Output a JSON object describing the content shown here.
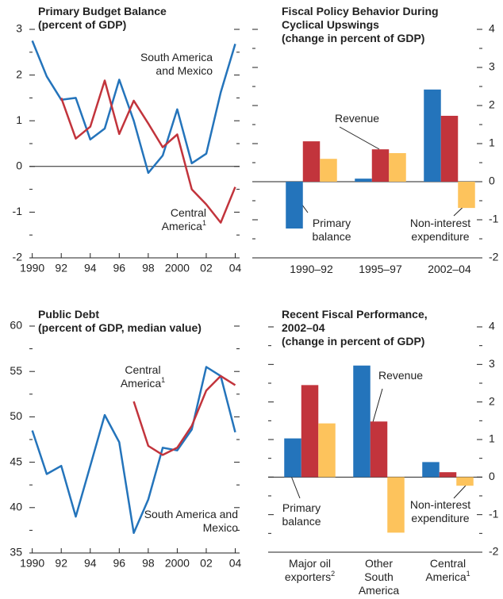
{
  "chart_data": [
    {
      "type": "line",
      "title": "Primary Budget Balance",
      "subtitle": "(percent of GDP)",
      "x": [
        1990,
        1991,
        1992,
        1993,
        1994,
        1995,
        1996,
        1997,
        1998,
        1999,
        2000,
        2001,
        2002,
        2003,
        2004
      ],
      "series": [
        {
          "name": "South America and Mexico",
          "color": "#2474bb",
          "values": [
            2.75,
            1.97,
            1.46,
            1.5,
            0.59,
            0.83,
            1.9,
            1.0,
            -0.14,
            0.24,
            1.25,
            0.07,
            0.28,
            1.62,
            2.68
          ]
        },
        {
          "name": "Central America",
          "note": "1",
          "color": "#c2343c",
          "values": [
            null,
            null,
            1.5,
            0.61,
            0.87,
            1.88,
            0.71,
            1.44,
            0.94,
            0.42,
            0.7,
            -0.5,
            -0.83,
            -1.23,
            -0.45
          ]
        }
      ],
      "xlim": [
        1989.8,
        2004.3
      ],
      "xticks": [
        1990,
        {
          "value": 1992,
          "label": "92"
        },
        {
          "value": 1994,
          "label": "94"
        },
        {
          "value": 1996,
          "label": "96"
        },
        {
          "value": 1998,
          "label": "98"
        },
        2000,
        {
          "value": 2002,
          "label": "02"
        },
        {
          "value": 2004,
          "label": "04"
        }
      ],
      "ylim": [
        -2,
        3
      ],
      "yticks": [
        -2,
        -1,
        0,
        1,
        2,
        3
      ],
      "yticks_minor": [
        -1.5,
        -0.5,
        0.5,
        1.5,
        2.5
      ]
    },
    {
      "type": "bar",
      "title": "Fiscal Policy Behavior During Cyclical Upswings",
      "subtitle": "(change in percent of GDP)",
      "categories": [
        "1990–92",
        "1995–97",
        "2002–04"
      ],
      "series": [
        {
          "name": "Primary balance",
          "color": "#2474bb",
          "values": [
            -1.23,
            0.08,
            2.42
          ]
        },
        {
          "name": "Revenue",
          "color": "#c2343c",
          "values": [
            1.06,
            0.85,
            1.73
          ]
        },
        {
          "name": "Non-interest expenditure",
          "color": "#fdc35c",
          "values": [
            0.6,
            0.75,
            -0.69
          ]
        }
      ],
      "ylim": [
        -2,
        4
      ],
      "yticks": [
        -2,
        -1,
        0,
        1,
        2,
        3,
        4
      ],
      "yticks_minor": [
        -1.5,
        -0.5,
        0.5,
        1.5,
        2.5,
        3.5
      ]
    },
    {
      "type": "line",
      "title": "Public Debt",
      "subtitle": "(percent of GDP, median value)",
      "x": [
        1990,
        1991,
        1992,
        1993,
        1994,
        1995,
        1996,
        1997,
        1998,
        1999,
        2000,
        2001,
        2002,
        2003,
        2004
      ],
      "series": [
        {
          "name": "South America and Mexico",
          "color": "#2474bb",
          "values": [
            48.5,
            43.7,
            44.6,
            39.0,
            44.6,
            50.2,
            47.2,
            37.2,
            40.9,
            46.6,
            46.3,
            48.6,
            55.5,
            54.5,
            48.3
          ]
        },
        {
          "name": "Central America",
          "note": "1",
          "color": "#c2343c",
          "values": [
            null,
            null,
            null,
            null,
            null,
            null,
            null,
            51.7,
            46.8,
            45.8,
            46.6,
            49.0,
            52.9,
            54.5,
            53.5
          ]
        }
      ],
      "xlim": [
        1989.8,
        2004.3
      ],
      "xticks": [
        1990,
        {
          "value": 1992,
          "label": "92"
        },
        {
          "value": 1994,
          "label": "94"
        },
        {
          "value": 1996,
          "label": "96"
        },
        {
          "value": 1998,
          "label": "98"
        },
        2000,
        {
          "value": 2002,
          "label": "02"
        },
        {
          "value": 2004,
          "label": "04"
        }
      ],
      "ylim": [
        35,
        60
      ],
      "yticks": [
        35,
        40,
        45,
        50,
        55,
        60
      ],
      "yticks_minor": [
        37.5,
        42.5,
        47.5,
        52.5,
        57.5
      ]
    },
    {
      "type": "bar",
      "title": "Recent Fiscal Performance, 2002–04",
      "subtitle": "(change in percent of GDP)",
      "categories": [
        "Major oil exporters",
        "Other South America",
        "Central America"
      ],
      "category_notes": [
        "2",
        null,
        "1"
      ],
      "series": [
        {
          "name": "Primary balance",
          "color": "#2474bb",
          "values": [
            1.03,
            2.97,
            0.4
          ]
        },
        {
          "name": "Revenue",
          "color": "#c2343c",
          "values": [
            2.45,
            1.48,
            0.13
          ]
        },
        {
          "name": "Non-interest expenditure",
          "color": "#fdc35c",
          "values": [
            1.43,
            -1.48,
            -0.23
          ]
        }
      ],
      "ylim": [
        -2,
        4
      ],
      "yticks": [
        -2,
        -1,
        0,
        1,
        2,
        3,
        4
      ],
      "yticks_minor": [
        -1.5,
        -0.5,
        0.5,
        1.5,
        2.5,
        3.5
      ]
    }
  ]
}
